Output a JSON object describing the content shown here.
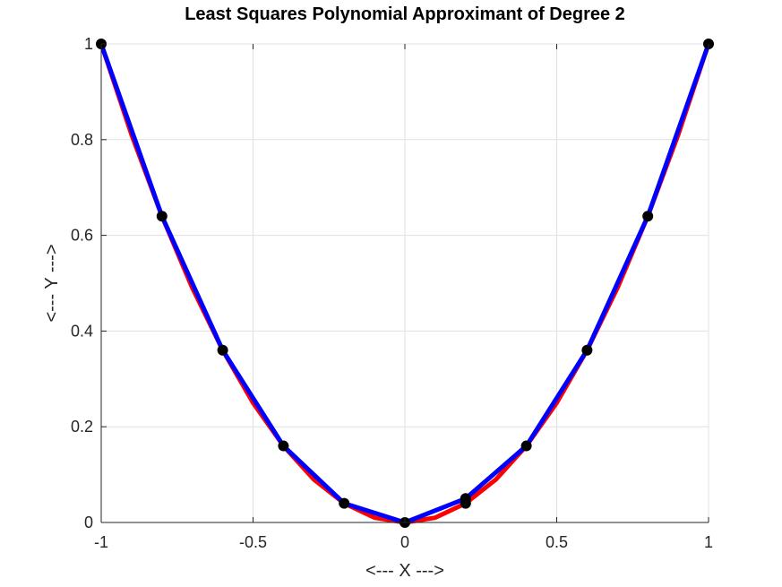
{
  "chart_data": {
    "type": "line",
    "title": "Least Squares Polynomial Approximant of Degree 2",
    "xlabel": "<--- X --->",
    "ylabel": "<--- Y --->",
    "xlim": [
      -1,
      1
    ],
    "ylim": [
      0,
      1
    ],
    "x_ticks": [
      -1,
      -0.5,
      0,
      0.5,
      1
    ],
    "x_tick_labels": [
      "-1",
      "-0.5",
      "0",
      "0.5",
      "1"
    ],
    "y_ticks": [
      0,
      0.2,
      0.4,
      0.6,
      0.8,
      1
    ],
    "y_tick_labels": [
      "0",
      "0.2",
      "0.4",
      "0.6",
      "0.8",
      "1"
    ],
    "grid": true,
    "series": [
      {
        "kind": "curve",
        "color": "#ff0000",
        "x": [
          -1,
          -0.9,
          -0.8,
          -0.7,
          -0.6,
          -0.5,
          -0.4,
          -0.3,
          -0.2,
          -0.1,
          0,
          0.1,
          0.2,
          0.3,
          0.4,
          0.5,
          0.6,
          0.7,
          0.8,
          0.9,
          1
        ],
        "y": [
          1,
          0.81,
          0.64,
          0.49,
          0.36,
          0.25,
          0.16,
          0.09,
          0.04,
          0.01,
          0,
          0.01,
          0.04,
          0.09,
          0.16,
          0.25,
          0.36,
          0.49,
          0.64,
          0.81,
          1
        ]
      },
      {
        "kind": "polyline",
        "color": "#0000ff",
        "x": [
          -1,
          -0.8,
          -0.6,
          -0.4,
          -0.2,
          0,
          0.2,
          0.4,
          0.6,
          0.8,
          1
        ],
        "y": [
          1,
          0.64,
          0.36,
          0.16,
          0.04,
          0,
          0.05,
          0.16,
          0.36,
          0.64,
          1
        ]
      },
      {
        "kind": "markers",
        "color": "#000000",
        "x": [
          -1,
          -0.8,
          -0.6,
          -0.4,
          -0.2,
          0,
          0.2,
          0.2,
          0.4,
          0.6,
          0.8,
          1
        ],
        "y": [
          1,
          0.64,
          0.36,
          0.16,
          0.04,
          0,
          0.04,
          0.05,
          0.16,
          0.36,
          0.64,
          1
        ]
      }
    ]
  }
}
